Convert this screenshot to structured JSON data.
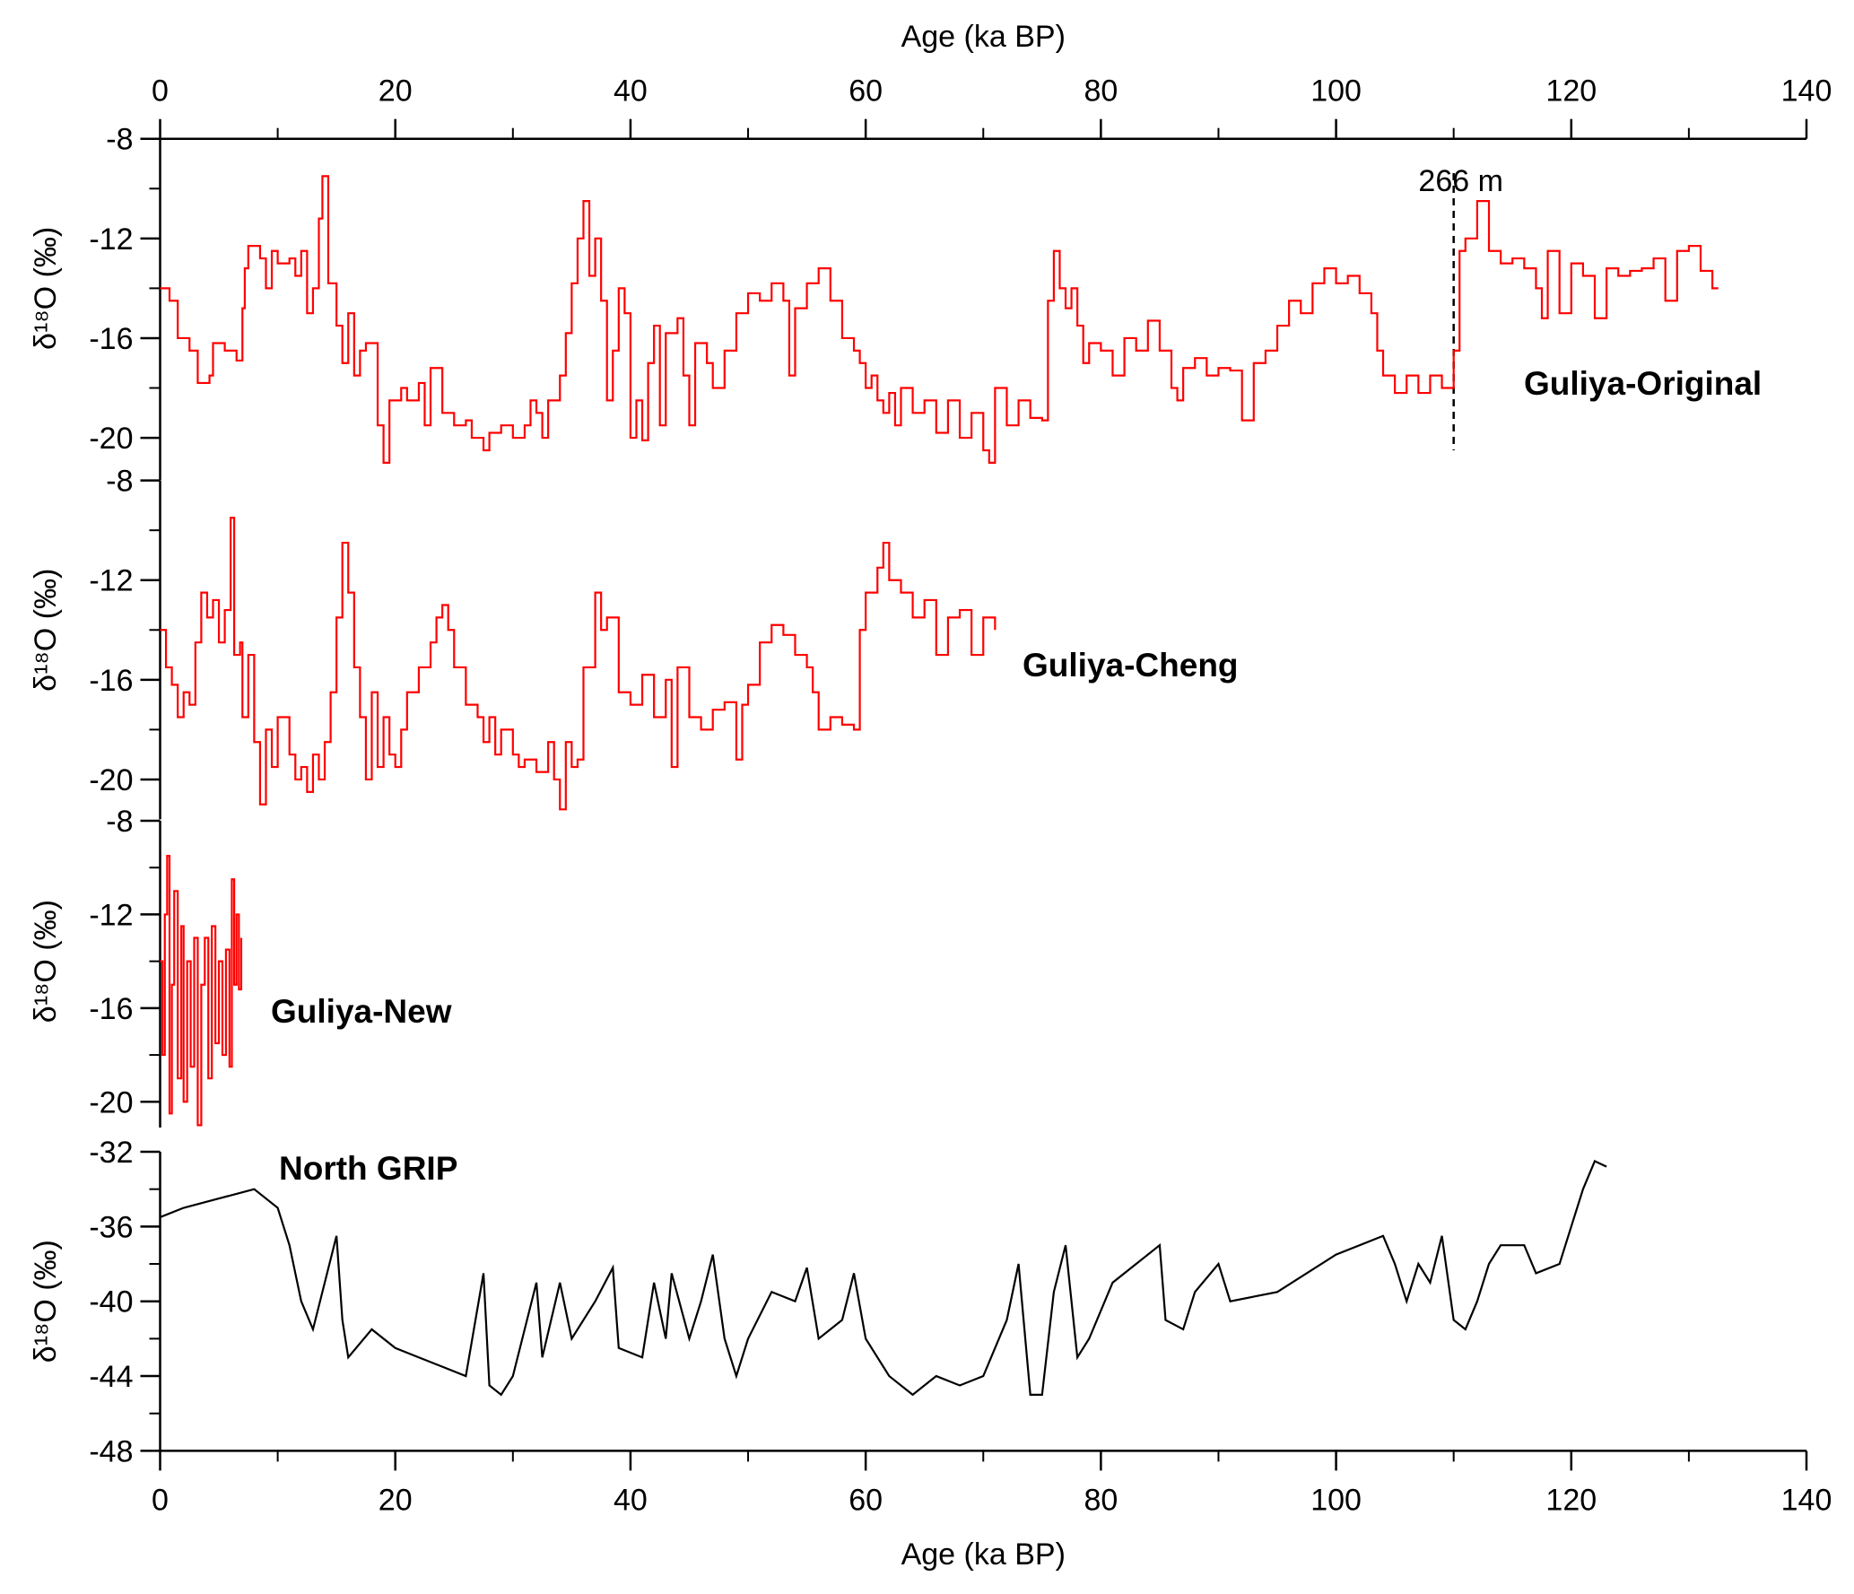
{
  "chart_data": [
    {
      "type": "line",
      "step": true,
      "ylabel": "δ¹⁸O (‰)",
      "xlabel": "Age (ka BP)",
      "xaxis": "top",
      "xlim": [
        0,
        140
      ],
      "xticks": [
        0,
        20,
        40,
        60,
        80,
        100,
        120,
        140
      ],
      "xticks_minor": [
        10,
        30,
        50,
        70,
        90,
        110,
        130
      ],
      "ylim": [
        -8,
        -21.7
      ],
      "yticks": [
        -8,
        -12,
        -16,
        -20
      ],
      "yticks_minor": [
        -10,
        -14,
        -18
      ],
      "annotations": [
        {
          "text": "266 m",
          "x": 110
        }
      ],
      "x": [
        0,
        0.8,
        1.5,
        2.5,
        3.2,
        4.2,
        4.5,
        5.5,
        6.5,
        7,
        7.2,
        7.5,
        8.5,
        9,
        9.5,
        10,
        11,
        11.5,
        12,
        12.5,
        13,
        13.5,
        13.8,
        14.3,
        15,
        15.5,
        16,
        16.5,
        17,
        17.5,
        18.5,
        19,
        19.5,
        20.5,
        21,
        22,
        22.5,
        23,
        24,
        25,
        26,
        26.5,
        27.5,
        28,
        29,
        30,
        31,
        31.5,
        32,
        32.5,
        33,
        34,
        34.5,
        35,
        35.5,
        36,
        36.5,
        37,
        37.5,
        38,
        38.5,
        39,
        39.5,
        40,
        40.5,
        41,
        41.5,
        42,
        42.5,
        43,
        44,
        44.5,
        45,
        45.5,
        46.5,
        47,
        48,
        49,
        50,
        51,
        52,
        53,
        53.5,
        54,
        55,
        56,
        57,
        58,
        59,
        59.5,
        60,
        60.5,
        61,
        61.5,
        62,
        62.5,
        63,
        64,
        65,
        66,
        67,
        68,
        69,
        70,
        70.5,
        71,
        72,
        73,
        74,
        75,
        75.5,
        76,
        76.5,
        77,
        77.5,
        78,
        78.5,
        79,
        80,
        81,
        82,
        83,
        84,
        85,
        86,
        86.5,
        87,
        88,
        89,
        90,
        91,
        92,
        93,
        94,
        95,
        96,
        97,
        98,
        99,
        100,
        101,
        102,
        103,
        103.5,
        104,
        105,
        106,
        107,
        108,
        109,
        110,
        110.5,
        111,
        112,
        113,
        114,
        115,
        116,
        117,
        117.5,
        118,
        119,
        120,
        121,
        122,
        123,
        124,
        125,
        126,
        127,
        128,
        129,
        130,
        131,
        132,
        132.5
      ],
      "series": [
        {
          "name": "Guliya-Original",
          "color": "#ff0000",
          "values": [
            -14,
            -14.5,
            -16,
            -16.5,
            -17.8,
            -17.5,
            -16.2,
            -16.5,
            -16.9,
            -14.8,
            -13.2,
            -12.3,
            -12.8,
            -14,
            -12.5,
            -13,
            -12.8,
            -13.5,
            -12.5,
            -15,
            -14,
            -11.2,
            -9.5,
            -13.8,
            -15.5,
            -17,
            -15,
            -17.5,
            -16.5,
            -16.2,
            -19.5,
            -21,
            -18.5,
            -18,
            -18.5,
            -17.8,
            -19.5,
            -17.2,
            -19,
            -19.5,
            -19.3,
            -20,
            -20.5,
            -19.8,
            -19.5,
            -20,
            -19.5,
            -18.5,
            -19,
            -20,
            -18.5,
            -17.5,
            -15.8,
            -13.8,
            -12,
            -10.5,
            -13.5,
            -12,
            -14.5,
            -18.5,
            -16.5,
            -14,
            -15,
            -20,
            -18.5,
            -20.1,
            -17,
            -15.5,
            -19.5,
            -15.8,
            -15.2,
            -17.5,
            -19.5,
            -16.2,
            -17,
            -18,
            -16.5,
            -15,
            -14.2,
            -14.5,
            -13.8,
            -14.5,
            -17.5,
            -14.8,
            -13.8,
            -13.2,
            -14.5,
            -16,
            -16.5,
            -17,
            -18,
            -17.5,
            -18.5,
            -19,
            -18.2,
            -19.5,
            -18,
            -19,
            -18.5,
            -19.8,
            -18.5,
            -20,
            -19,
            -20.5,
            -21,
            -18,
            -19.5,
            -18.5,
            -19.2,
            -19.3,
            -14.5,
            -12.5,
            -14,
            -14.8,
            -14,
            -15.5,
            -17,
            -16.2,
            -16.5,
            -17.5,
            -16,
            -16.5,
            -15.3,
            -16.5,
            -18,
            -18.5,
            -17.2,
            -16.8,
            -17.5,
            -17.2,
            -17.3,
            -19.3,
            -17,
            -16.5,
            -15.5,
            -14.5,
            -15,
            -13.8,
            -13.2,
            -13.8,
            -13.5,
            -14.2,
            -15,
            -16.5,
            -17.5,
            -18.2,
            -17.5,
            -18.2,
            -17.5,
            -18,
            -16.5,
            -12.5,
            -12,
            -10.5,
            -12.5,
            -13,
            -12.8,
            -13.2,
            -14,
            -15.2,
            -12.5,
            -15,
            -13,
            -13.5,
            -15.2,
            -13.2,
            -13.5,
            -13.3,
            -13.2,
            -12.8,
            -14.5,
            -12.5,
            -12.3,
            -13.3,
            -14,
            -14
          ]
        }
      ]
    },
    {
      "type": "line",
      "step": true,
      "ylabel": "δ¹⁸O (‰)",
      "xlim": [
        0,
        140
      ],
      "ylim": [
        -8,
        -21.6
      ],
      "yticks": [
        -8,
        -12,
        -16,
        -20
      ],
      "yticks_minor": [
        -10,
        -14,
        -18
      ],
      "x": [
        0,
        0.5,
        1,
        1.5,
        2,
        2.5,
        3,
        3.5,
        4,
        4.5,
        5,
        5.5,
        6,
        6.3,
        6.8,
        7,
        7.5,
        8,
        8.5,
        9,
        9.5,
        10,
        11,
        11.5,
        12,
        12.5,
        13,
        13.5,
        14,
        14.5,
        15,
        15.5,
        16,
        16.5,
        17,
        17.5,
        18,
        18.5,
        19,
        19.5,
        20,
        20.5,
        21,
        22,
        23,
        23.5,
        24,
        24.5,
        25,
        26,
        27,
        27.5,
        28,
        28.5,
        29,
        30,
        30.5,
        31,
        32,
        33,
        33.5,
        34,
        34.5,
        35,
        35.5,
        36,
        37,
        37.5,
        38,
        39,
        40,
        41,
        42,
        43,
        43.5,
        44,
        45,
        46,
        47,
        48,
        49,
        49.5,
        50,
        51,
        52,
        53,
        54,
        55,
        55.5,
        56,
        57,
        58,
        59,
        59.5,
        60,
        61,
        61.5,
        62,
        63,
        64,
        65,
        66,
        67,
        68,
        69,
        70,
        71
      ],
      "series": [
        {
          "name": "Guliya-Cheng",
          "color": "#ff0000",
          "values": [
            -14,
            -15.5,
            -16.2,
            -17.5,
            -16.5,
            -17,
            -14.5,
            -12.5,
            -13.5,
            -12.8,
            -14.5,
            -13.2,
            -9.5,
            -15,
            -14.5,
            -17.5,
            -15,
            -18.5,
            -21,
            -18,
            -19.5,
            -17.5,
            -19,
            -20,
            -19.5,
            -20.5,
            -19,
            -20,
            -18.5,
            -16.5,
            -13.5,
            -10.5,
            -12.5,
            -15.5,
            -17.5,
            -20,
            -16.5,
            -19.5,
            -17.5,
            -19,
            -19.5,
            -18,
            -16.5,
            -15.5,
            -14.5,
            -13.5,
            -13,
            -14,
            -15.5,
            -17,
            -17.5,
            -18.5,
            -17.5,
            -19,
            -18,
            -19,
            -19.5,
            -19.2,
            -19.7,
            -18.5,
            -20,
            -21.2,
            -18.5,
            -19.5,
            -19.2,
            -15.5,
            -12.5,
            -14,
            -13.5,
            -16.5,
            -17,
            -15.8,
            -17.5,
            -16,
            -19.5,
            -15.5,
            -17.5,
            -18,
            -17.2,
            -16.9,
            -19.2,
            -17,
            -16.2,
            -14.5,
            -13.8,
            -14.2,
            -15,
            -15.5,
            -16.5,
            -18,
            -17.5,
            -17.8,
            -18,
            -14,
            -12.5,
            -11.5,
            -10.5,
            -12,
            -12.5,
            -13.5,
            -12.8,
            -15,
            -13.5,
            -13.2,
            -15,
            -13.5,
            -14
          ]
        }
      ]
    },
    {
      "type": "line",
      "step": true,
      "ylabel": "δ¹⁸O (‰)",
      "xlim": [
        0,
        140
      ],
      "ylim": [
        -8,
        -21.1
      ],
      "yticks": [
        -8,
        -12,
        -16,
        -20
      ],
      "yticks_minor": [
        -10,
        -14,
        -18
      ],
      "x": [
        0,
        0.2,
        0.4,
        0.6,
        0.8,
        1,
        1.2,
        1.5,
        1.8,
        2,
        2.3,
        2.6,
        2.9,
        3.2,
        3.5,
        3.8,
        4.1,
        4.4,
        4.7,
        5,
        5.3,
        5.6,
        5.9,
        6.1,
        6.3,
        6.5,
        6.7,
        6.9
      ],
      "series": [
        {
          "name": "Guliya-New",
          "color": "#ff0000",
          "values": [
            -14,
            -18,
            -12,
            -9.5,
            -20.5,
            -15,
            -11,
            -19,
            -12.5,
            -20,
            -14,
            -18.5,
            -13,
            -21,
            -15,
            -13,
            -19,
            -12.5,
            -17.5,
            -14,
            -18,
            -13.5,
            -18.5,
            -10.5,
            -15,
            -12,
            -15.2,
            -13
          ]
        }
      ]
    },
    {
      "type": "line",
      "step": false,
      "ylabel": "δ¹⁸O (‰)",
      "xlabel": "Age (ka BP)",
      "xaxis": "bottom",
      "xlim": [
        0,
        140
      ],
      "xticks": [
        0,
        20,
        40,
        60,
        80,
        100,
        120,
        140
      ],
      "xticks_minor": [
        10,
        30,
        50,
        70,
        90,
        110,
        130
      ],
      "ylim": [
        -32,
        -48
      ],
      "yticks": [
        -32,
        -36,
        -40,
        -44,
        -48
      ],
      "yticks_minor": [
        -34,
        -38,
        -42,
        -46
      ],
      "x": [
        0,
        2,
        5,
        8,
        10,
        11,
        12,
        13,
        14,
        15,
        15.5,
        16,
        18,
        20,
        22,
        24,
        26,
        27.5,
        28,
        29,
        30,
        32,
        32.5,
        34,
        35,
        37,
        38.5,
        39,
        41,
        42,
        43,
        43.5,
        45,
        46,
        47,
        48,
        49,
        50,
        52,
        54,
        55,
        56,
        58,
        59,
        60,
        62,
        64,
        66,
        68,
        70,
        72,
        73,
        74,
        75,
        76,
        77,
        78,
        79,
        81,
        83,
        85,
        85.5,
        87,
        88,
        90,
        91,
        95,
        100,
        104,
        105,
        106,
        107,
        108,
        109,
        110,
        111,
        112,
        113,
        114,
        116,
        117,
        119,
        120,
        121,
        122,
        123
      ],
      "series": [
        {
          "name": "North GRIP",
          "color": "#000000",
          "values": [
            -35.5,
            -35,
            -34.5,
            -34,
            -35,
            -37,
            -40,
            -41.5,
            -39,
            -36.5,
            -41,
            -43,
            -41.5,
            -42.5,
            -43,
            -43.5,
            -44,
            -38.5,
            -44.5,
            -45,
            -44,
            -39,
            -43,
            -39,
            -42,
            -40,
            -38.2,
            -42.5,
            -43,
            -39,
            -42,
            -38.5,
            -42,
            -40,
            -37.5,
            -42,
            -44,
            -42,
            -39.5,
            -40,
            -38.2,
            -42,
            -41,
            -38.5,
            -42,
            -44,
            -45,
            -44,
            -44.5,
            -44,
            -41,
            -38,
            -45,
            -45,
            -39.5,
            -37,
            -43,
            -42,
            -39,
            -38,
            -37,
            -41,
            -41.5,
            -39.5,
            -38,
            -40,
            -39.5,
            -37.5,
            -36.5,
            -38,
            -40,
            -38,
            -39,
            -36.5,
            -41,
            -41.5,
            -40,
            -38,
            -37,
            -37,
            -38.5,
            -38,
            -36,
            -34,
            -32.5,
            -32.8
          ]
        }
      ]
    }
  ]
}
